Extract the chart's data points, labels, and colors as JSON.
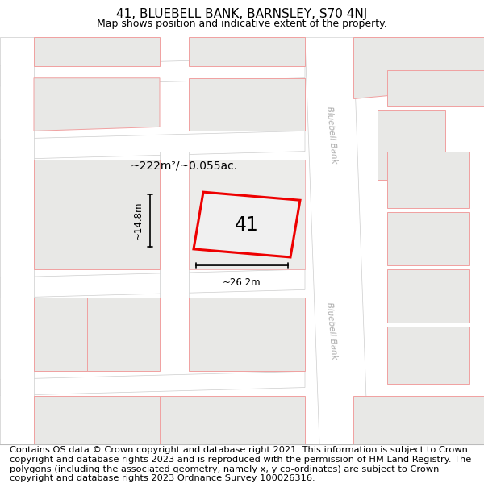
{
  "title_line1": "41, BLUEBELL BANK, BARNSLEY, S70 4NJ",
  "title_line2": "Map shows position and indicative extent of the property.",
  "footer_text": "Contains OS data © Crown copyright and database right 2021. This information is subject to Crown copyright and database rights 2023 and is reproduced with the permission of HM Land Registry. The polygons (including the associated geometry, namely x, y co-ordinates) are subject to Crown copyright and database rights 2023 Ordnance Survey 100026316.",
  "area_label": "~222m²/~0.055ac.",
  "property_number": "41",
  "width_label": "~26.2m",
  "height_label": "~14.8m",
  "map_bg": "#f7f7f5",
  "block_fill": "#e8e8e6",
  "block_edge": "#f0a0a0",
  "road_fill": "#ffffff",
  "road_edge": "#cccccc",
  "prop_fill": "#f0f0f0",
  "prop_edge": "#ee0000",
  "street_color": "#aaaaaa",
  "street_label": "Bluebell Bank",
  "title_fontsize": 11,
  "footer_fontsize": 8.2
}
